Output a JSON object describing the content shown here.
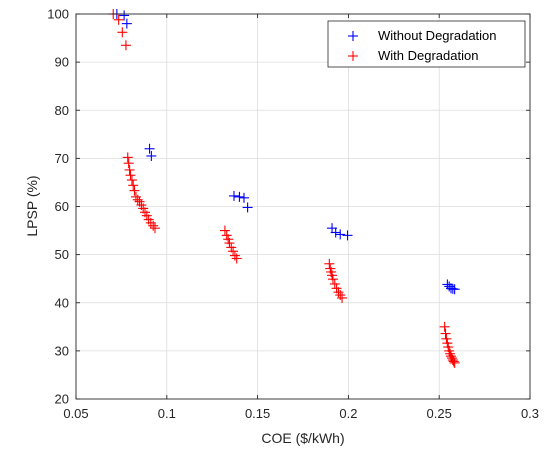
{
  "chart_data": {
    "type": "scatter",
    "title": "",
    "xlabel": "COE ($/kWh)",
    "ylabel": "LPSP (%)",
    "xlim": [
      0.05,
      0.3
    ],
    "ylim": [
      20,
      100
    ],
    "xticks": [
      0.05,
      0.1,
      0.15,
      0.2,
      0.25,
      0.3
    ],
    "yticks": [
      20,
      30,
      40,
      50,
      60,
      70,
      80,
      90,
      100
    ],
    "xtick_labels": [
      "0.05",
      "0.1",
      "0.15",
      "0.2",
      "0.25",
      "0.3"
    ],
    "ytick_labels": [
      "20",
      "30",
      "40",
      "50",
      "60",
      "70",
      "80",
      "90",
      "100"
    ],
    "grid": true,
    "legend_position": "top-right",
    "marker": "+",
    "series": [
      {
        "name": "Without Degradation",
        "color": "#0000ff",
        "points": [
          [
            0.0725,
            100.0
          ],
          [
            0.0765,
            99.7
          ],
          [
            0.078,
            98.0
          ],
          [
            0.0905,
            72.0
          ],
          [
            0.0915,
            70.5
          ],
          [
            0.137,
            62.2
          ],
          [
            0.14,
            62.0
          ],
          [
            0.1425,
            61.8
          ],
          [
            0.1445,
            59.8
          ],
          [
            0.191,
            55.5
          ],
          [
            0.193,
            54.6
          ],
          [
            0.1955,
            54.2
          ],
          [
            0.1995,
            54.0
          ],
          [
            0.2545,
            43.8
          ],
          [
            0.2555,
            43.4
          ],
          [
            0.2565,
            43.0
          ],
          [
            0.2575,
            42.9
          ],
          [
            0.2585,
            42.8
          ]
        ]
      },
      {
        "name": "With Degradation",
        "color": "#ff0000",
        "points": [
          [
            0.0705,
            100.0
          ],
          [
            0.0735,
            98.8
          ],
          [
            0.0755,
            96.2
          ],
          [
            0.0775,
            93.5
          ],
          [
            0.0785,
            70.2
          ],
          [
            0.079,
            69.0
          ],
          [
            0.0795,
            67.6
          ],
          [
            0.08,
            66.5
          ],
          [
            0.0808,
            65.5
          ],
          [
            0.0815,
            64.4
          ],
          [
            0.0822,
            63.3
          ],
          [
            0.083,
            62.0
          ],
          [
            0.084,
            61.4
          ],
          [
            0.085,
            61.0
          ],
          [
            0.086,
            60.3
          ],
          [
            0.087,
            59.6
          ],
          [
            0.088,
            58.8
          ],
          [
            0.089,
            58.1
          ],
          [
            0.09,
            57.3
          ],
          [
            0.0912,
            56.6
          ],
          [
            0.0925,
            56.0
          ],
          [
            0.0935,
            55.5
          ],
          [
            0.132,
            55.0
          ],
          [
            0.133,
            54.0
          ],
          [
            0.1338,
            53.2
          ],
          [
            0.1345,
            52.4
          ],
          [
            0.1355,
            51.5
          ],
          [
            0.1365,
            50.7
          ],
          [
            0.1375,
            49.8
          ],
          [
            0.1385,
            49.2
          ],
          [
            0.1895,
            48.1
          ],
          [
            0.19,
            47.1
          ],
          [
            0.1905,
            46.4
          ],
          [
            0.191,
            45.7
          ],
          [
            0.1915,
            44.9
          ],
          [
            0.1925,
            43.9
          ],
          [
            0.1935,
            43.0
          ],
          [
            0.1945,
            42.2
          ],
          [
            0.1955,
            41.6
          ],
          [
            0.1965,
            41.0
          ],
          [
            0.253,
            35.0
          ],
          [
            0.2535,
            33.6
          ],
          [
            0.254,
            32.5
          ],
          [
            0.2545,
            31.6
          ],
          [
            0.255,
            30.8
          ],
          [
            0.2555,
            30.0
          ],
          [
            0.256,
            29.4
          ],
          [
            0.2565,
            28.9
          ],
          [
            0.257,
            28.5
          ],
          [
            0.2575,
            28.1
          ],
          [
            0.258,
            27.8
          ],
          [
            0.2585,
            27.5
          ]
        ]
      }
    ]
  }
}
